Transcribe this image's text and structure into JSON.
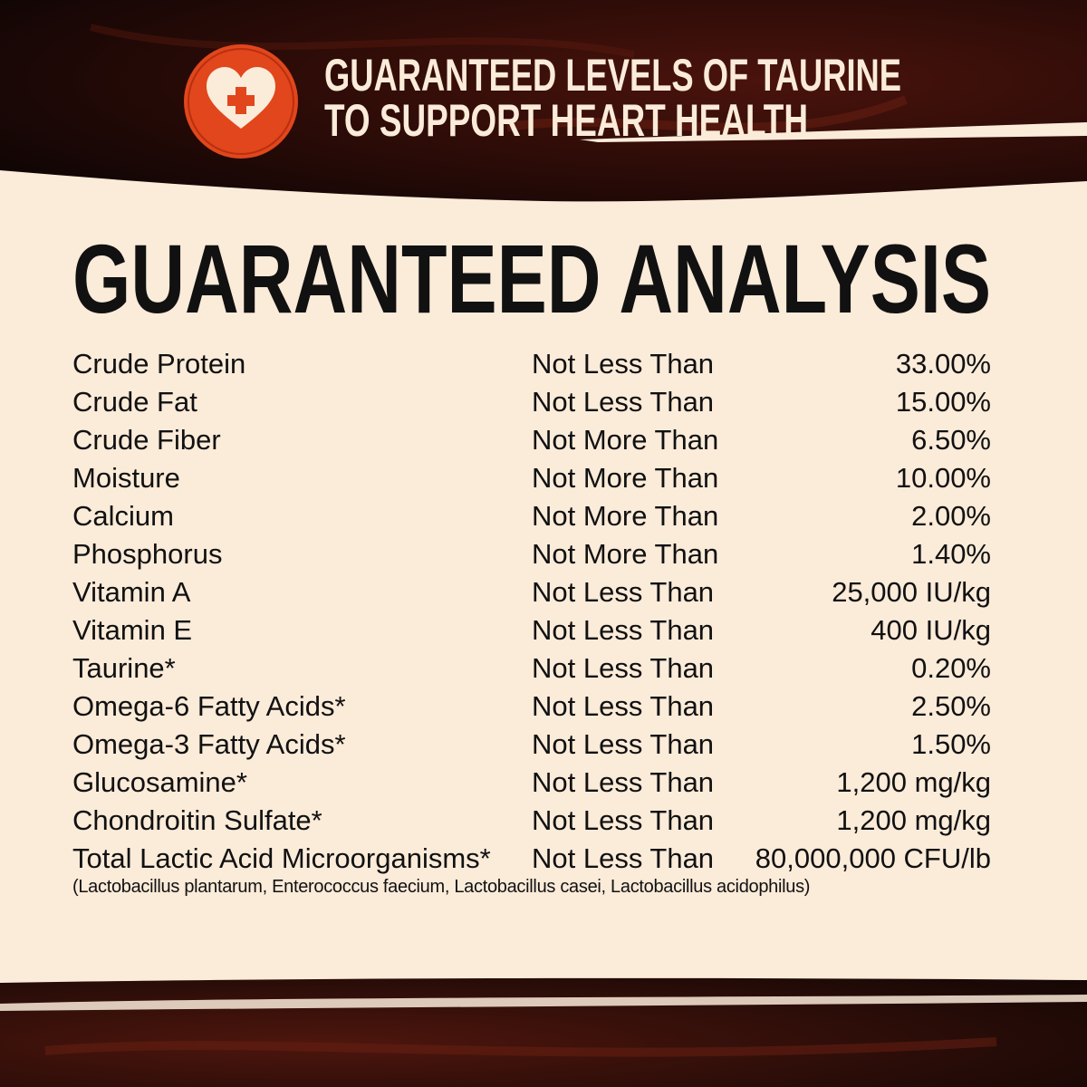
{
  "header": {
    "icon": "heart-plus-icon",
    "line1": "GUARANTEED LEVELS OF TAURINE",
    "line2": "TO SUPPORT HEART HEALTH"
  },
  "title": "GUARANTEED ANALYSIS",
  "rows": [
    {
      "nutrient": "Crude Protein",
      "qualifier": "Not Less Than",
      "value": "33.00%"
    },
    {
      "nutrient": "Crude Fat",
      "qualifier": "Not Less Than",
      "value": "15.00%"
    },
    {
      "nutrient": "Crude Fiber",
      "qualifier": "Not More Than",
      "value": "6.50%"
    },
    {
      "nutrient": "Moisture",
      "qualifier": "Not More Than",
      "value": "10.00%"
    },
    {
      "nutrient": "Calcium",
      "qualifier": "Not More Than",
      "value": "2.00%"
    },
    {
      "nutrient": "Phosphorus",
      "qualifier": "Not More Than",
      "value": "1.40%"
    },
    {
      "nutrient": "Vitamin A",
      "qualifier": "Not Less Than",
      "value": "25,000 IU/kg"
    },
    {
      "nutrient": "Vitamin E",
      "qualifier": "Not Less Than",
      "value": "400 IU/kg"
    },
    {
      "nutrient": "Taurine*",
      "qualifier": "Not Less Than",
      "value": "0.20%"
    },
    {
      "nutrient": "Omega-6 Fatty Acids*",
      "qualifier": "Not Less Than",
      "value": "2.50%"
    },
    {
      "nutrient": "Omega-3 Fatty Acids*",
      "qualifier": "Not Less Than",
      "value": "1.50%"
    },
    {
      "nutrient": "Glucosamine*",
      "qualifier": "Not Less Than",
      "value": "1,200 mg/kg"
    },
    {
      "nutrient": "Chondroitin Sulfate*",
      "qualifier": "Not Less Than",
      "value": "1,200 mg/kg"
    },
    {
      "nutrient": "Total Lactic Acid Microorganisms*",
      "qualifier": "Not Less Than",
      "value": "80,000,000 CFU/lb"
    }
  ],
  "footnote": "(Lactobacillus plantarum, Enterococcus faecium, Lactobacillus casei, Lactobacillus acidophilus)",
  "colors": {
    "dark": "#1a0a08",
    "texture": "#5a1a10",
    "cream": "#fbebd9",
    "accent": "#e2461c",
    "text": "#111111"
  }
}
